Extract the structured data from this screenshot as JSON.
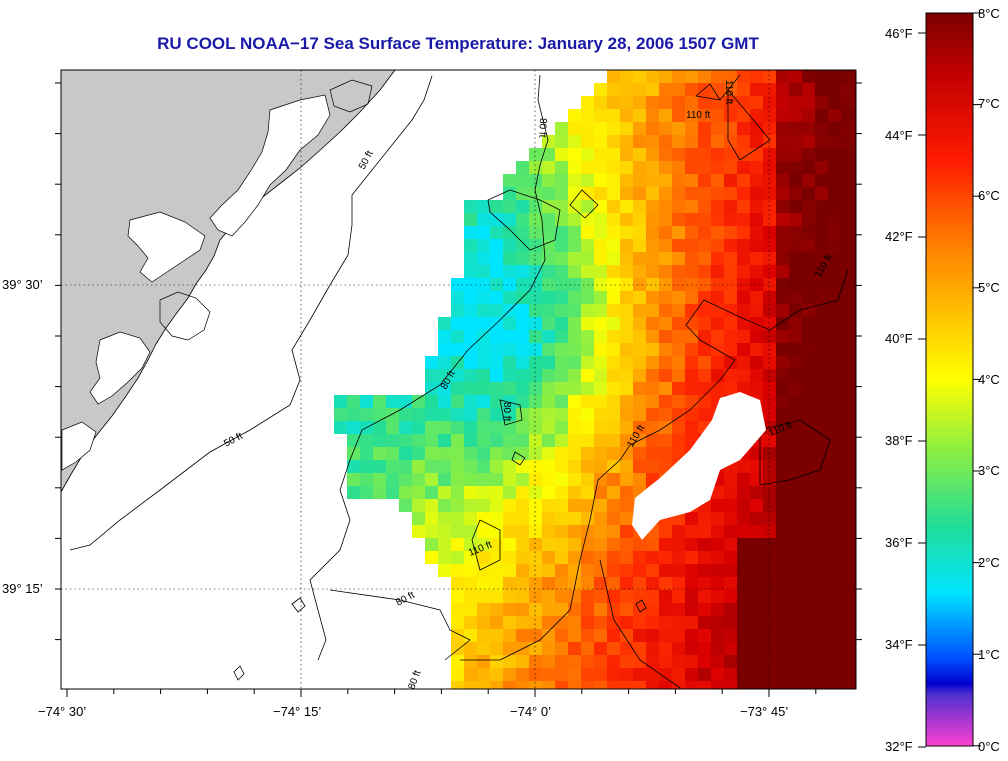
{
  "title": "RU COOL  NOAA−17  Sea Surface Temperature:  January 28, 2006 1507 GMT",
  "longitude_labels": [
    "−74° 30’",
    "−74° 15’",
    "−74° 0’",
    "−73° 45’"
  ],
  "latitude_labels": [
    "39° 30’",
    "39° 15’"
  ],
  "contours": [
    {
      "label": "50 ft"
    },
    {
      "label": "50 ft"
    },
    {
      "label": "80 ft"
    },
    {
      "label": "80 ft"
    },
    {
      "label": "80 ft"
    },
    {
      "label": "80 ft"
    },
    {
      "label": "80 ft"
    },
    {
      "label": "110 ft"
    },
    {
      "label": "110 ft"
    },
    {
      "label": "110 ft"
    },
    {
      "label": "110 ft"
    },
    {
      "label": "110 ft"
    }
  ],
  "colorbar": {
    "fahrenheit_labels": [
      "46°F",
      "44°F",
      "42°F",
      "40°F",
      "38°F",
      "36°F",
      "34°F",
      "32°F"
    ],
    "celsius_labels": [
      "8°C",
      "7°C",
      "6°C",
      "5°C",
      "4°C",
      "3°C",
      "2°C",
      "1°C",
      "0°C"
    ],
    "colors": {
      "max": "#7a0000",
      "high": "#ff1a00",
      "mid_high": "#ffa000",
      "mid": "#ffff00",
      "mid_low": "#33dd88",
      "low": "#00ffff",
      "lower": "#0000ff",
      "min": "#ff40c0"
    }
  },
  "land_color": "#c8c8c8",
  "cloud_color": "#ffffff"
}
